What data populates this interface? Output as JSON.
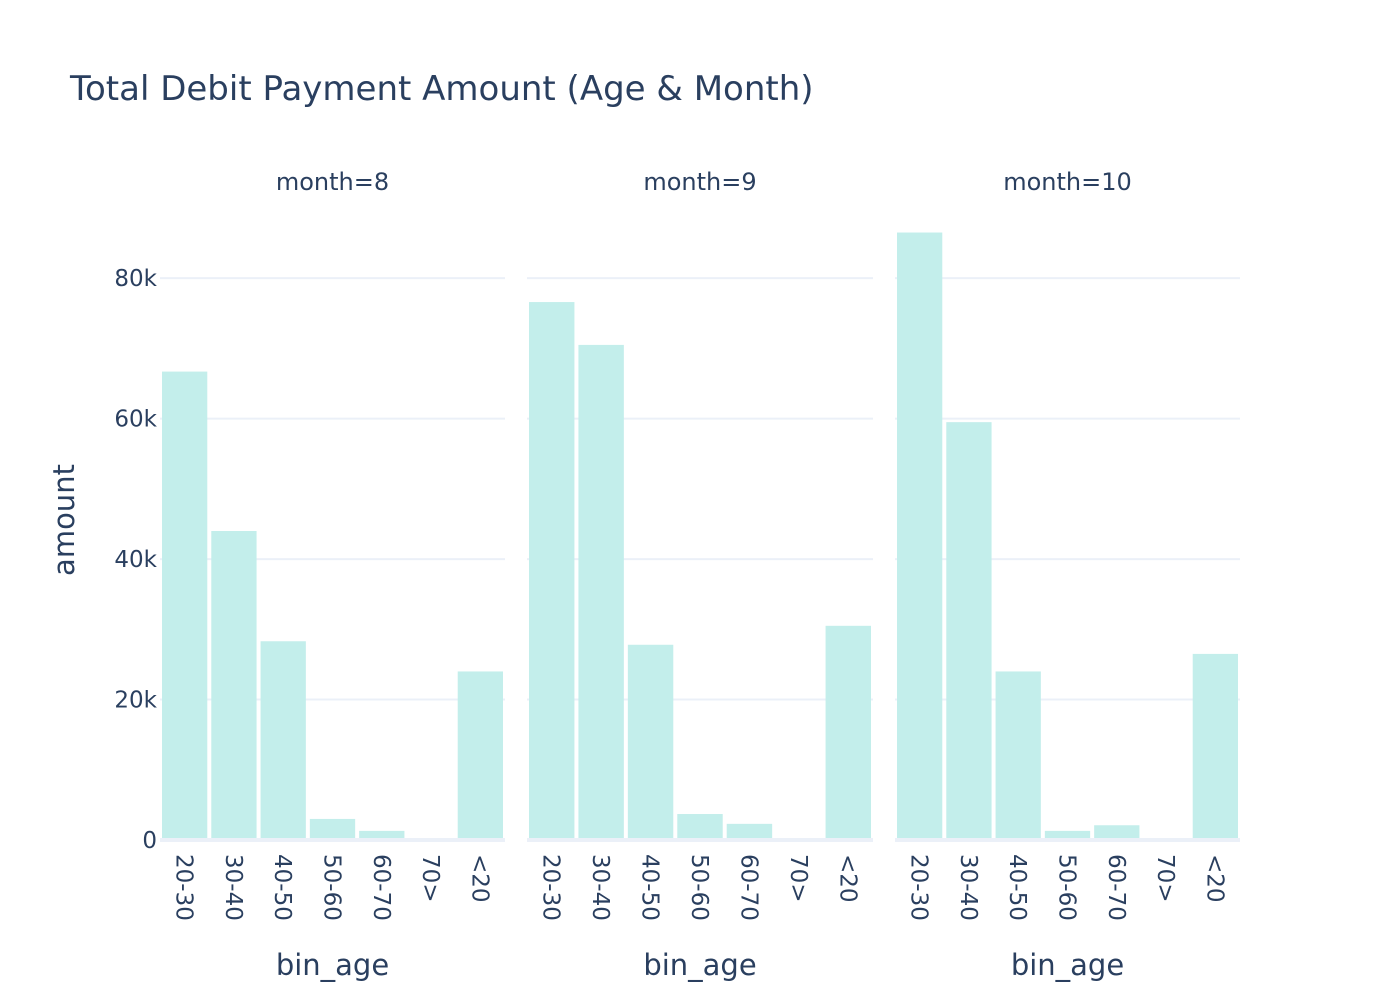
{
  "chart_data": {
    "type": "bar",
    "title": "Total Debit Payment Amount (Age & Month)",
    "ylabel": "amount",
    "xlabel": "bin_age",
    "ylim": [
      0,
      88000
    ],
    "yticks": [
      0,
      20000,
      40000,
      60000,
      80000
    ],
    "ytick_labels": [
      "0",
      "20k",
      "40k",
      "60k",
      "80k"
    ],
    "categories": [
      "20-30",
      "30-40",
      "40-50",
      "50-60",
      "60-70",
      "70>",
      "<20"
    ],
    "bar_color": "#c3eeeb",
    "grid": true,
    "facets": [
      {
        "label": "month=8",
        "values": [
          66700,
          44000,
          28300,
          3000,
          1300,
          50,
          24000
        ]
      },
      {
        "label": "month=9",
        "values": [
          76600,
          70500,
          27800,
          3700,
          2300,
          50,
          30500
        ]
      },
      {
        "label": "month=10",
        "values": [
          86500,
          59500,
          24000,
          1300,
          2100,
          50,
          26500
        ]
      }
    ]
  }
}
